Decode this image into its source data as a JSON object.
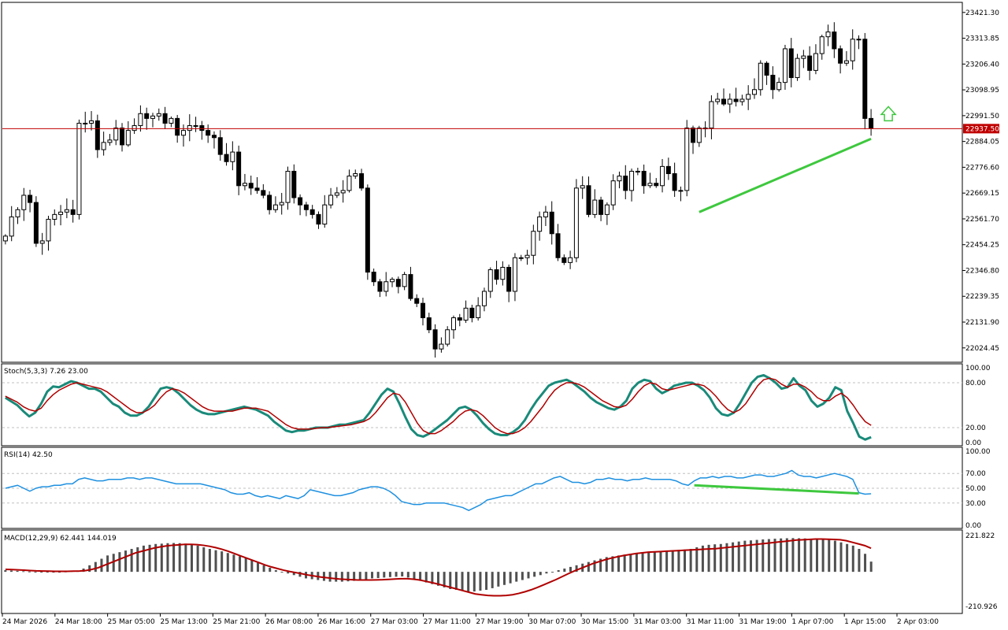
{
  "colors": {
    "background": "#ffffff",
    "frame": "#000000",
    "grid_dotted": "#c0c0c0",
    "candle_up": "#ffffff",
    "candle_down": "#000000",
    "price_line": "#c00000",
    "price_tag_bg": "#c00000",
    "trendline": "#3ec83e",
    "arrow": "#3ec83e",
    "stoch_main": "#1a8a7a",
    "stoch_signal": "#b00000",
    "rsi": "#1e90e0",
    "macd_hist": "#505050",
    "macd_signal": "#b00000"
  },
  "chart_data": [
    {
      "type": "candlestick",
      "price_axis_ticks": [
        "23421.30",
        "23313.85",
        "23206.40",
        "23098.95",
        "22991.50",
        "22884.05",
        "22776.60",
        "22669.15",
        "22561.70",
        "22454.25",
        "22346.80",
        "22239.35",
        "22131.90",
        "22024.45"
      ],
      "ylim": [
        21968.0,
        23460.0
      ],
      "current_price": "22937.50",
      "closes": [
        22490,
        22570,
        22600,
        22660,
        22630,
        22460,
        22470,
        22560,
        22580,
        22590,
        22600,
        22580,
        22960,
        22960,
        22970,
        22850,
        22880,
        22890,
        22940,
        22870,
        22930,
        22950,
        23000,
        22980,
        22990,
        23000,
        22960,
        22980,
        22910,
        22930,
        22950,
        22950,
        22930,
        22910,
        22900,
        22830,
        22800,
        22840,
        22700,
        22710,
        22690,
        22680,
        22660,
        22600,
        22620,
        22630,
        22760,
        22650,
        22620,
        22600,
        22580,
        22540,
        22620,
        22660,
        22670,
        22680,
        22740,
        22750,
        22690,
        22340,
        22300,
        22260,
        22300,
        22310,
        22280,
        22330,
        22230,
        22210,
        22150,
        22100,
        22020,
        22040,
        22100,
        22150,
        22140,
        22190,
        22150,
        22200,
        22260,
        22350,
        22310,
        22360,
        22260,
        22400,
        22400,
        22410,
        22510,
        22570,
        22590,
        22500,
        22400,
        22380,
        22400,
        22690,
        22700,
        22580,
        22640,
        22580,
        22620,
        22720,
        22740,
        22680,
        22760,
        22760,
        22700,
        22710,
        22700,
        22780,
        22750,
        22680,
        22680,
        22940,
        22880,
        22940,
        22940,
        23050,
        23060,
        23040,
        23060,
        23050,
        23060,
        23080,
        23100,
        23210,
        23160,
        23100,
        23130,
        23270,
        23150,
        23230,
        23240,
        23180,
        23250,
        23320,
        23340,
        23270,
        23210,
        23220,
        23310,
        23310,
        22980,
        22940
      ],
      "candles_count": 142,
      "x_tick_labels": [
        "24 Mar 2026",
        "24 Mar 18:00",
        "25 Mar 05:00",
        "25 Mar 13:00",
        "25 Mar 21:00",
        "26 Mar 08:00",
        "26 Mar 16:00",
        "27 Mar 03:00",
        "27 Mar 11:00",
        "27 Mar 19:00",
        "30 Mar 07:00",
        "30 Mar 15:00",
        "31 Mar 03:00",
        "31 Mar 11:00",
        "31 Mar 19:00",
        "1 Apr 07:00",
        "1 Apr 15:00",
        "2 Apr 03:00"
      ],
      "trendline": {
        "from_index": 113,
        "from_price": 22590,
        "to_index": 141,
        "to_price": 22895
      },
      "annotation": "up-arrow"
    },
    {
      "type": "line",
      "label": "Stoch(5,3,3) 7.26 23.00",
      "ylim": [
        0,
        100
      ],
      "y_tick_labels": [
        "100.00",
        "80.00",
        "20.00",
        "0.00"
      ],
      "levels": [
        80,
        20
      ],
      "series": [
        {
          "values": [
            60,
            55,
            50,
            42,
            35,
            40,
            52,
            68,
            75,
            74,
            78,
            82,
            80,
            76,
            72,
            72,
            68,
            60,
            52,
            48,
            40,
            36,
            36,
            40,
            48,
            60,
            72,
            74,
            72,
            66,
            58,
            50,
            44,
            40,
            38,
            38,
            40,
            42,
            44,
            46,
            48,
            46,
            44,
            40,
            36,
            28,
            22,
            16,
            14,
            16,
            16,
            18,
            20,
            20,
            20,
            22,
            24,
            24,
            26,
            28,
            30,
            40,
            52,
            64,
            72,
            68,
            52,
            34,
            18,
            10,
            8,
            12,
            18,
            24,
            30,
            38,
            46,
            48,
            44,
            36,
            26,
            18,
            12,
            10,
            10,
            14,
            20,
            30,
            44,
            56,
            66,
            76,
            80,
            82,
            84,
            80,
            74,
            68,
            60,
            54,
            50,
            46,
            44,
            48,
            56,
            72,
            80,
            84,
            82,
            72,
            66,
            70,
            76,
            78,
            80,
            80,
            76,
            70,
            60,
            46,
            38,
            36,
            40,
            52,
            66,
            80,
            88,
            90,
            86,
            80,
            72,
            74,
            86,
            76,
            70,
            56,
            48,
            52,
            60,
            74,
            70,
            42,
            26,
            8,
            4,
            7.26
          ]
        },
        {
          "values": [
            62,
            58,
            54,
            48,
            44,
            42,
            46,
            56,
            64,
            70,
            74,
            78,
            80,
            78,
            76,
            74,
            72,
            68,
            62,
            56,
            50,
            44,
            40,
            40,
            44,
            50,
            60,
            68,
            72,
            70,
            66,
            60,
            54,
            48,
            44,
            42,
            42,
            42,
            42,
            44,
            46,
            46,
            46,
            44,
            42,
            36,
            30,
            24,
            20,
            18,
            18,
            18,
            19,
            20,
            20,
            21,
            22,
            23,
            24,
            26,
            28,
            32,
            40,
            50,
            60,
            66,
            64,
            54,
            40,
            26,
            16,
            12,
            12,
            16,
            22,
            28,
            36,
            42,
            44,
            42,
            36,
            28,
            20,
            15,
            12,
            12,
            15,
            20,
            28,
            38,
            48,
            60,
            70,
            76,
            80,
            80,
            78,
            74,
            68,
            62,
            56,
            52,
            48,
            47,
            50,
            58,
            68,
            76,
            80,
            78,
            72,
            70,
            72,
            74,
            76,
            78,
            78,
            76,
            70,
            62,
            52,
            44,
            40,
            44,
            52,
            64,
            76,
            84,
            86,
            84,
            78,
            74,
            78,
            78,
            74,
            68,
            60,
            56,
            56,
            62,
            66,
            60,
            50,
            38,
            28,
            23.0
          ]
        }
      ]
    },
    {
      "type": "line",
      "label": "RSI(14) 42.50",
      "ylim": [
        0,
        100
      ],
      "y_tick_labels": [
        "100.00",
        "70.00",
        "50.00",
        "30.00",
        "0.00"
      ],
      "levels": [
        70,
        50,
        30
      ],
      "series": [
        {
          "values": [
            50,
            52,
            54,
            50,
            46,
            50,
            52,
            52,
            54,
            54,
            56,
            56,
            62,
            64,
            62,
            60,
            60,
            62,
            62,
            62,
            64,
            64,
            62,
            64,
            64,
            62,
            60,
            58,
            56,
            56,
            56,
            56,
            56,
            54,
            52,
            50,
            48,
            44,
            42,
            42,
            44,
            40,
            38,
            40,
            38,
            36,
            40,
            38,
            36,
            40,
            48,
            46,
            44,
            42,
            40,
            40,
            42,
            44,
            48,
            50,
            52,
            52,
            50,
            46,
            40,
            32,
            30,
            28,
            28,
            30,
            30,
            30,
            30,
            28,
            26,
            24,
            20,
            24,
            28,
            34,
            36,
            38,
            40,
            40,
            44,
            48,
            52,
            56,
            56,
            60,
            64,
            66,
            62,
            58,
            58,
            56,
            58,
            62,
            62,
            64,
            62,
            62,
            60,
            62,
            62,
            64,
            62,
            62,
            62,
            62,
            60,
            56,
            54,
            60,
            64,
            64,
            66,
            64,
            66,
            66,
            64,
            64,
            66,
            68,
            68,
            66,
            66,
            68,
            70,
            74,
            68,
            66,
            66,
            64,
            66,
            68,
            70,
            68,
            66,
            62,
            44,
            42,
            42.5
          ]
        }
      ]
    },
    {
      "type": "bar",
      "label": "MACD(12,29,9) 62.441 144.019",
      "ylim": [
        -210.926,
        221.822
      ],
      "y_tick_labels": [
        "221.822",
        "-210.926"
      ],
      "series": [
        {
          "name": "histogram",
          "values": [
            10,
            8,
            6,
            4,
            2,
            0,
            -2,
            -4,
            -2,
            0,
            2,
            6,
            8,
            20,
            40,
            60,
            80,
            100,
            110,
            120,
            130,
            140,
            150,
            160,
            165,
            170,
            172,
            175,
            176,
            175,
            172,
            168,
            160,
            150,
            140,
            132,
            125,
            115,
            105,
            95,
            85,
            70,
            55,
            40,
            25,
            10,
            0,
            -10,
            -20,
            -30,
            -40,
            -45,
            -50,
            -55,
            -60,
            -60,
            -60,
            -58,
            -55,
            -50,
            -45,
            -40,
            -38,
            -35,
            -32,
            -30,
            -28,
            -35,
            -45,
            -55,
            -65,
            -75,
            -85,
            -95,
            -105,
            -110,
            -115,
            -120,
            -120,
            -115,
            -110,
            -100,
            -90,
            -80,
            -70,
            -60,
            -50,
            -40,
            -30,
            -20,
            -10,
            0,
            10,
            20,
            30,
            40,
            50,
            60,
            70,
            80,
            90,
            95,
            100,
            105,
            110,
            115,
            120,
            122,
            125,
            128,
            130,
            132,
            134,
            136,
            140,
            150,
            160,
            165,
            168,
            170,
            175,
            180,
            185,
            190,
            192,
            195,
            198,
            200,
            202,
            204,
            205,
            206,
            205,
            204,
            202,
            200,
            198,
            195,
            190,
            180,
            170,
            160,
            140,
            110,
            62.441
          ]
        },
        {
          "name": "signal",
          "values": [
            15,
            14,
            12,
            10,
            8,
            6,
            5,
            4,
            3,
            3,
            3,
            4,
            5,
            8,
            15,
            25,
            40,
            55,
            70,
            85,
            100,
            115,
            125,
            135,
            145,
            152,
            158,
            162,
            165,
            168,
            168,
            166,
            162,
            156,
            148,
            138,
            126,
            112,
            98,
            84,
            70,
            56,
            42,
            30,
            20,
            10,
            2,
            -5,
            -12,
            -20,
            -26,
            -32,
            -36,
            -40,
            -44,
            -46,
            -48,
            -50,
            -50,
            -50,
            -49,
            -48,
            -46,
            -44,
            -42,
            -42,
            -45,
            -50,
            -58,
            -66,
            -75,
            -85,
            -95,
            -105,
            -115,
            -125,
            -135,
            -140,
            -144,
            -146,
            -146,
            -144,
            -140,
            -132,
            -122,
            -110,
            -96,
            -80,
            -64,
            -48,
            -30,
            -12,
            5,
            20,
            35,
            50,
            62,
            74,
            84,
            92,
            100,
            106,
            112,
            116,
            120,
            122,
            124,
            126,
            128,
            130,
            132,
            134,
            136,
            138,
            140,
            142,
            146,
            150,
            154,
            158,
            162,
            166,
            170,
            174,
            178,
            182,
            186,
            190,
            194,
            196,
            198,
            200,
            200,
            199,
            198,
            196,
            190,
            180,
            170,
            160,
            144.019
          ]
        }
      ]
    }
  ]
}
